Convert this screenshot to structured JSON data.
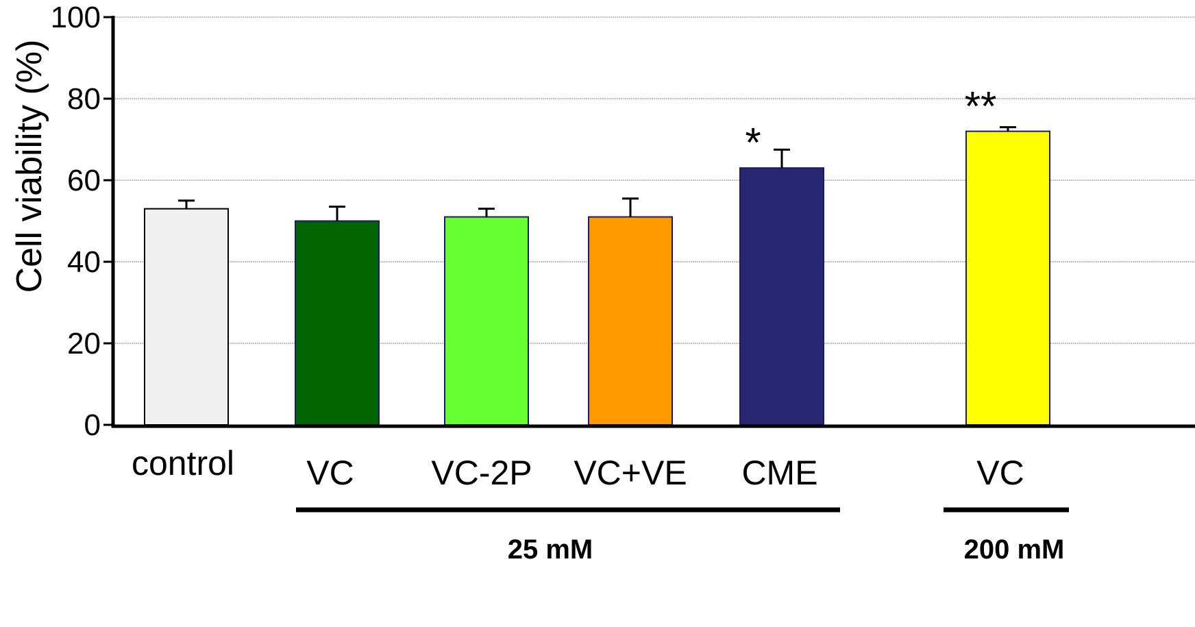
{
  "chart_data": {
    "type": "bar",
    "title": "",
    "xlabel": "",
    "ylabel": "Cell viability (%)",
    "ylim": [
      0,
      100
    ],
    "yticks": [
      0,
      20,
      40,
      60,
      80,
      100
    ],
    "grid": true,
    "categories": [
      "control",
      "VC",
      "VC-2P",
      "VC+VE",
      "CME",
      "VC"
    ],
    "values": [
      53,
      50,
      51,
      51,
      63,
      72
    ],
    "errors": [
      2,
      3.5,
      2,
      4.5,
      4.5,
      1
    ],
    "colors": [
      "#f0f0f0",
      "#006400",
      "#66ff33",
      "#ff9900",
      "#262671",
      "#ffff00"
    ],
    "significance": [
      "",
      "",
      "",
      "",
      "*",
      "**"
    ],
    "groups": [
      {
        "label": "25 mM",
        "from": 1,
        "to": 4
      },
      {
        "label": "200 mM",
        "from": 5,
        "to": 5
      }
    ]
  }
}
